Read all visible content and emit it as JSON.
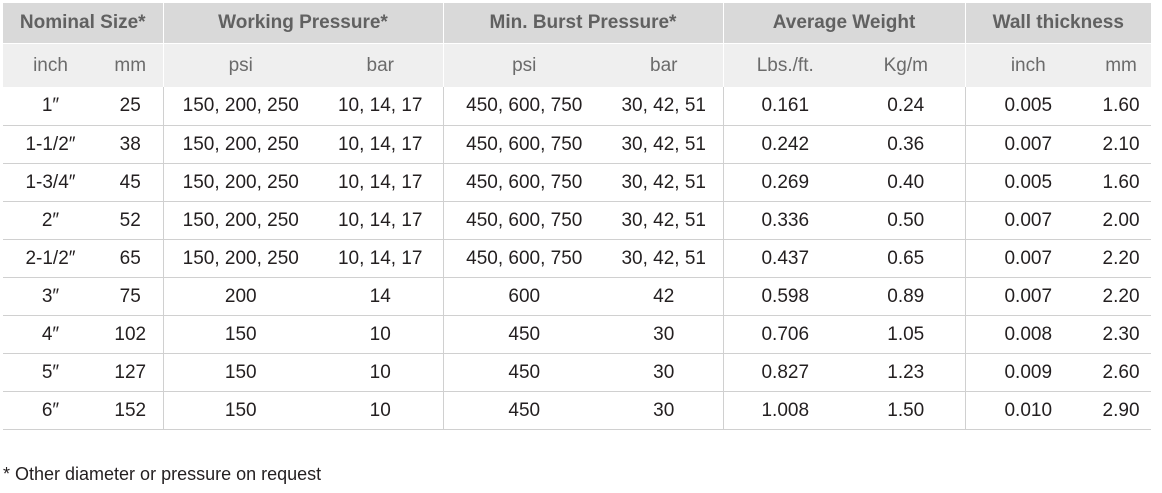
{
  "table": {
    "group_headers": [
      "Nominal Size*",
      "Working Pressure*",
      "Min. Burst Pressure*",
      "Average Weight",
      "Wall thickness"
    ],
    "unit_headers": [
      "inch",
      "mm",
      "psi",
      "bar",
      "psi",
      "bar",
      "Lbs./ft.",
      "Kg/m",
      "inch",
      "mm"
    ],
    "rows": [
      [
        "1″",
        "25",
        "150, 200, 250",
        "10, 14, 17",
        "450, 600, 750",
        "30, 42, 51",
        "0.161",
        "0.24",
        "0.005",
        "1.60"
      ],
      [
        "1-1/2″",
        "38",
        "150, 200, 250",
        "10, 14, 17",
        "450, 600, 750",
        "30, 42, 51",
        "0.242",
        "0.36",
        "0.007",
        "2.10"
      ],
      [
        "1-3/4″",
        "45",
        "150, 200, 250",
        "10, 14, 17",
        "450, 600, 750",
        "30, 42, 51",
        "0.269",
        "0.40",
        "0.005",
        "1.60"
      ],
      [
        "2″",
        "52",
        "150, 200, 250",
        "10, 14, 17",
        "450, 600, 750",
        "30, 42, 51",
        "0.336",
        "0.50",
        "0.007",
        "2.00"
      ],
      [
        "2-1/2″",
        "65",
        "150, 200, 250",
        "10, 14, 17",
        "450, 600, 750",
        "30, 42, 51",
        "0.437",
        "0.65",
        "0.007",
        "2.20"
      ],
      [
        "3″",
        "75",
        "200",
        "14",
        "600",
        "42",
        "0.598",
        "0.89",
        "0.007",
        "2.20"
      ],
      [
        "4″",
        "102",
        "150",
        "10",
        "450",
        "30",
        "0.706",
        "1.05",
        "0.008",
        "2.30"
      ],
      [
        "5″",
        "127",
        "150",
        "10",
        "450",
        "30",
        "0.827",
        "1.23",
        "0.009",
        "2.60"
      ],
      [
        "6″",
        "152",
        "150",
        "10",
        "450",
        "30",
        "1.008",
        "1.50",
        "0.010",
        "2.90"
      ]
    ]
  },
  "footnote": "* Other diameter or pressure on request"
}
